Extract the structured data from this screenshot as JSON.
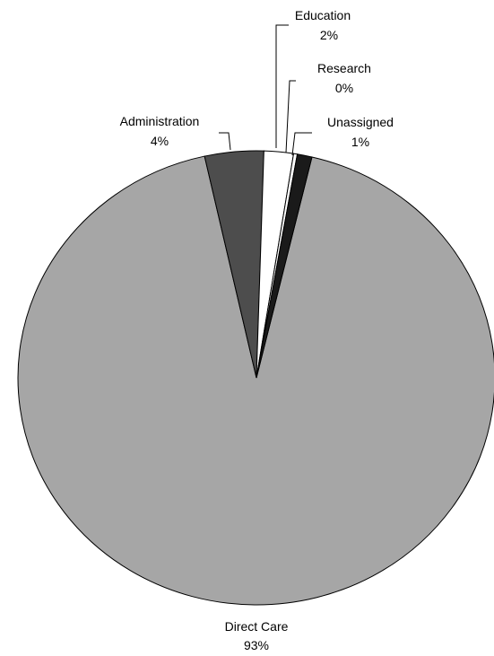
{
  "chart_data": {
    "type": "pie",
    "title": "",
    "slices": [
      {
        "label": "Direct Care",
        "value": 93,
        "display": "93%",
        "color": "#a6a6a6"
      },
      {
        "label": "Administration",
        "value": 4,
        "display": "4%",
        "color": "#4d4d4d"
      },
      {
        "label": "Education",
        "value": 2,
        "display": "2%",
        "color": "#ffffff"
      },
      {
        "label": "Research",
        "value": 0,
        "display": "0%",
        "color": "#ffffff"
      },
      {
        "label": "Unassigned",
        "value": 1,
        "display": "1%",
        "color": "#1a1a1a"
      }
    ],
    "legend": "none",
    "data_labels": "outside with leader lines"
  }
}
